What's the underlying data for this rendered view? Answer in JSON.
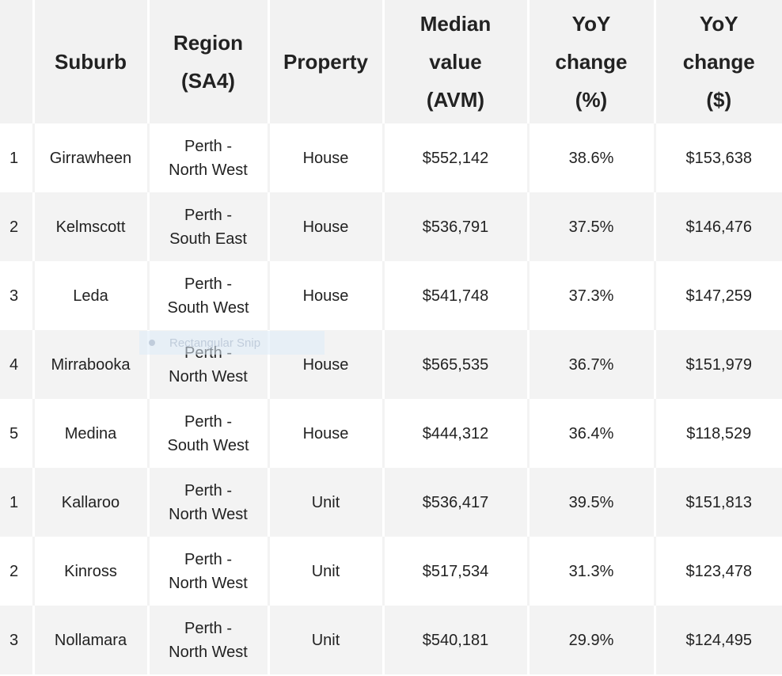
{
  "columns": [
    {
      "key": "rank",
      "label": ""
    },
    {
      "key": "suburb",
      "label": "Suburb"
    },
    {
      "key": "region",
      "label": "Region\n(SA4)"
    },
    {
      "key": "property",
      "label": "Property"
    },
    {
      "key": "median",
      "label": "Median\nvalue\n(AVM)"
    },
    {
      "key": "yoy_pct",
      "label": "YoY\nchange\n(%)"
    },
    {
      "key": "yoy_dollar",
      "label": "YoY\nchange\n($)"
    }
  ],
  "rows": [
    {
      "rank": "1",
      "suburb": "Girrawheen",
      "region": "Perth -\nNorth West",
      "property": "House",
      "median": "$552,142",
      "yoy_pct": "38.6%",
      "yoy_dollar": "$153,638"
    },
    {
      "rank": "2",
      "suburb": "Kelmscott",
      "region": "Perth -\nSouth East",
      "property": "House",
      "median": "$536,791",
      "yoy_pct": "37.5%",
      "yoy_dollar": "$146,476"
    },
    {
      "rank": "3",
      "suburb": "Leda",
      "region": "Perth -\nSouth West",
      "property": "House",
      "median": "$541,748",
      "yoy_pct": "37.3%",
      "yoy_dollar": "$147,259"
    },
    {
      "rank": "4",
      "suburb": "Mirrabooka",
      "region": "Perth -\nNorth West",
      "property": "House",
      "median": "$565,535",
      "yoy_pct": "36.7%",
      "yoy_dollar": "$151,979"
    },
    {
      "rank": "5",
      "suburb": "Medina",
      "region": "Perth -\nSouth West",
      "property": "House",
      "median": "$444,312",
      "yoy_pct": "36.4%",
      "yoy_dollar": "$118,529"
    },
    {
      "rank": "1",
      "suburb": "Kallaroo",
      "region": "Perth -\nNorth West",
      "property": "Unit",
      "median": "$536,417",
      "yoy_pct": "39.5%",
      "yoy_dollar": "$151,813"
    },
    {
      "rank": "2",
      "suburb": "Kinross",
      "region": "Perth -\nNorth West",
      "property": "Unit",
      "median": "$517,534",
      "yoy_pct": "31.3%",
      "yoy_dollar": "$123,478"
    },
    {
      "rank": "3",
      "suburb": "Nollamara",
      "region": "Perth -\nNorth West",
      "property": "Unit",
      "median": "$540,181",
      "yoy_pct": "29.9%",
      "yoy_dollar": "$124,495"
    }
  ],
  "overlay": {
    "snip_label": "Rectangular Snip"
  }
}
